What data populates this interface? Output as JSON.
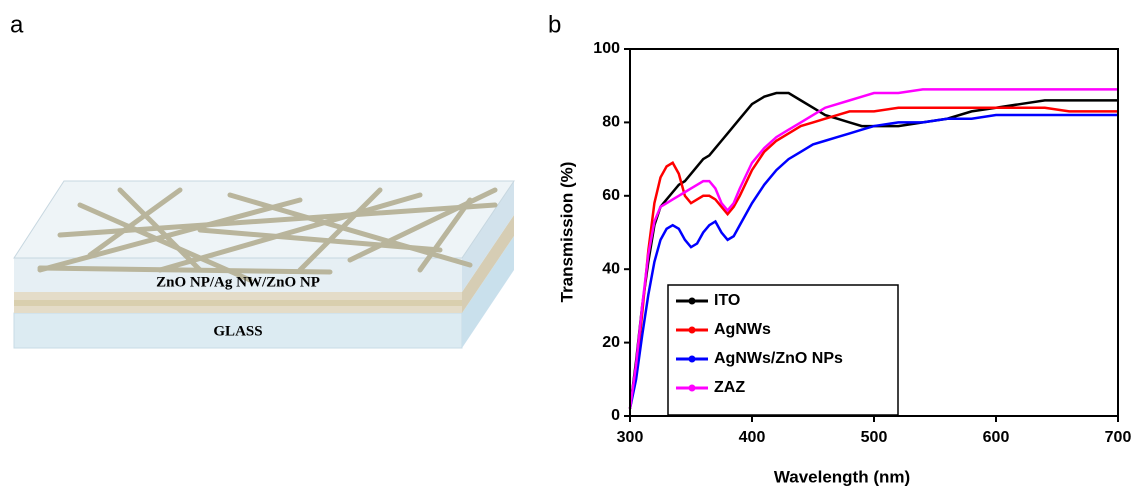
{
  "panels": [
    "a",
    "b"
  ],
  "diagram": {
    "layer_label": "ZnO NP/Ag NW/ZnO NP",
    "substrate_label": "GLASS"
  },
  "chart_data": {
    "type": "line",
    "x_label": "Wavelength (nm)",
    "y_label": "Transmission (%)",
    "x": [
      300,
      305,
      310,
      315,
      320,
      325,
      330,
      335,
      340,
      345,
      350,
      355,
      360,
      365,
      370,
      375,
      380,
      385,
      390,
      400,
      410,
      420,
      430,
      440,
      450,
      460,
      470,
      480,
      490,
      500,
      520,
      540,
      560,
      580,
      600,
      620,
      640,
      660,
      680,
      700
    ],
    "series": [
      {
        "name": "ITO",
        "color": "#000000",
        "values": [
          2,
          15,
          30,
          42,
          52,
          57,
          59,
          61,
          63,
          64,
          66,
          68,
          70,
          71,
          73,
          75,
          77,
          79,
          81,
          85,
          87,
          88,
          88,
          86,
          84,
          82,
          81,
          80,
          79,
          79,
          79,
          80,
          81,
          83,
          84,
          85,
          86,
          86,
          86,
          86
        ]
      },
      {
        "name": "AgNWs",
        "color": "#ff0000",
        "values": [
          2,
          12,
          28,
          45,
          58,
          65,
          68,
          69,
          66,
          60,
          58,
          59,
          60,
          60,
          59,
          57,
          55,
          57,
          60,
          67,
          72,
          75,
          77,
          79,
          80,
          81,
          82,
          83,
          83,
          83,
          84,
          84,
          84,
          84,
          84,
          84,
          84,
          83,
          83,
          83
        ]
      },
      {
        "name": "AgNWs/ZnO NPs",
        "color": "#0000ff",
        "values": [
          2,
          10,
          22,
          33,
          42,
          48,
          51,
          52,
          51,
          48,
          46,
          47,
          50,
          52,
          53,
          50,
          48,
          49,
          52,
          58,
          63,
          67,
          70,
          72,
          74,
          75,
          76,
          77,
          78,
          79,
          80,
          80,
          81,
          81,
          82,
          82,
          82,
          82,
          82,
          82
        ]
      },
      {
        "name": "ZAZ",
        "color": "#ff00ff",
        "values": [
          2,
          14,
          30,
          44,
          53,
          57,
          58,
          59,
          60,
          61,
          62,
          63,
          64,
          64,
          62,
          58,
          56,
          58,
          62,
          69,
          73,
          76,
          78,
          80,
          82,
          84,
          85,
          86,
          87,
          88,
          88,
          89,
          89,
          89,
          89,
          89,
          89,
          89,
          89,
          89
        ]
      }
    ],
    "xlim": [
      300,
      700
    ],
    "xticks": [
      300,
      400,
      500,
      600,
      700
    ],
    "ylim": [
      0,
      100
    ],
    "yticks": [
      0,
      20,
      40,
      60,
      80,
      100
    ],
    "legend": "lower-left"
  }
}
